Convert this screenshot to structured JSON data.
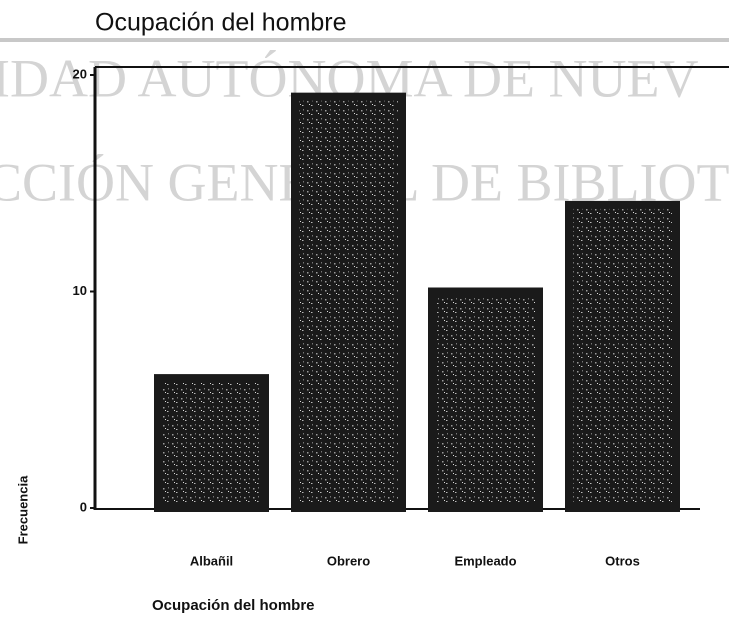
{
  "chart_data": {
    "type": "bar",
    "title": "Ocupación del hombre",
    "x_label": "Ocupación del hombre",
    "y_label": "Frecuencia",
    "watermark": [
      "IDAD AUTÓNOMA DE NUEV",
      "CCIÓN GENERAL DE BIBLIOTEC"
    ],
    "categories": [
      "Albañil",
      "Obrero",
      "Empleado",
      "Otros"
    ],
    "values": [
      6,
      19,
      10,
      14
    ],
    "color": "#1a1a1a",
    "ylim": [
      0,
      20
    ],
    "yticks": [
      0,
      10,
      20
    ],
    "grid": false
  }
}
